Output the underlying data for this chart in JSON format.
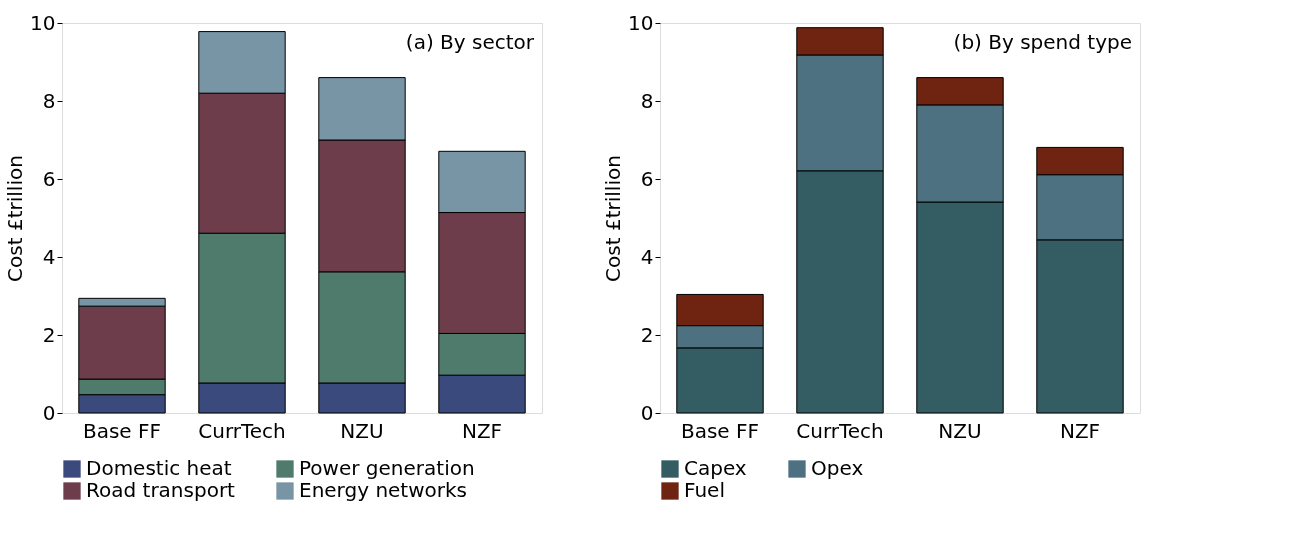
{
  "chart_data": [
    {
      "type": "bar",
      "stacked": true,
      "categories": [
        "Base FF",
        "CurrTech",
        "NZU",
        "NZF"
      ],
      "ylabel": "Cost £trillion",
      "ylim": [
        0,
        10
      ],
      "yticks": [
        0,
        2,
        4,
        6,
        8,
        10
      ],
      "grid": false,
      "legend": "bottom",
      "annotations": [
        "(a) By sector"
      ],
      "series": [
        {
          "name": "Domestic heat",
          "color": "#3b4a7c",
          "values": [
            0.47,
            0.77,
            0.77,
            0.97
          ]
        },
        {
          "name": "Power generation",
          "color": "#4e7b6b",
          "values": [
            0.4,
            3.84,
            2.85,
            1.07
          ]
        },
        {
          "name": "Road transport",
          "color": "#6e3d4b",
          "values": [
            1.87,
            3.59,
            3.38,
            3.1
          ]
        },
        {
          "name": "Energy networks",
          "color": "#7895a6",
          "values": [
            0.2,
            1.58,
            1.6,
            1.57
          ]
        }
      ]
    },
    {
      "type": "bar",
      "stacked": true,
      "categories": [
        "Base FF",
        "CurrTech",
        "NZU",
        "NZF"
      ],
      "ylabel": "Cost £trillion",
      "ylim": [
        0,
        10
      ],
      "yticks": [
        0,
        2,
        4,
        6,
        8,
        10
      ],
      "grid": false,
      "legend": "bottom",
      "annotations": [
        "(b) By spend type"
      ],
      "series": [
        {
          "name": "Capex",
          "color": "#335c63",
          "values": [
            1.67,
            6.21,
            5.41,
            4.44
          ]
        },
        {
          "name": "Opex",
          "color": "#4e7182",
          "values": [
            0.57,
            2.97,
            2.49,
            1.67
          ]
        },
        {
          "name": "Fuel",
          "color": "#6e2410",
          "values": [
            0.8,
            0.7,
            0.7,
            0.7
          ]
        }
      ]
    }
  ]
}
